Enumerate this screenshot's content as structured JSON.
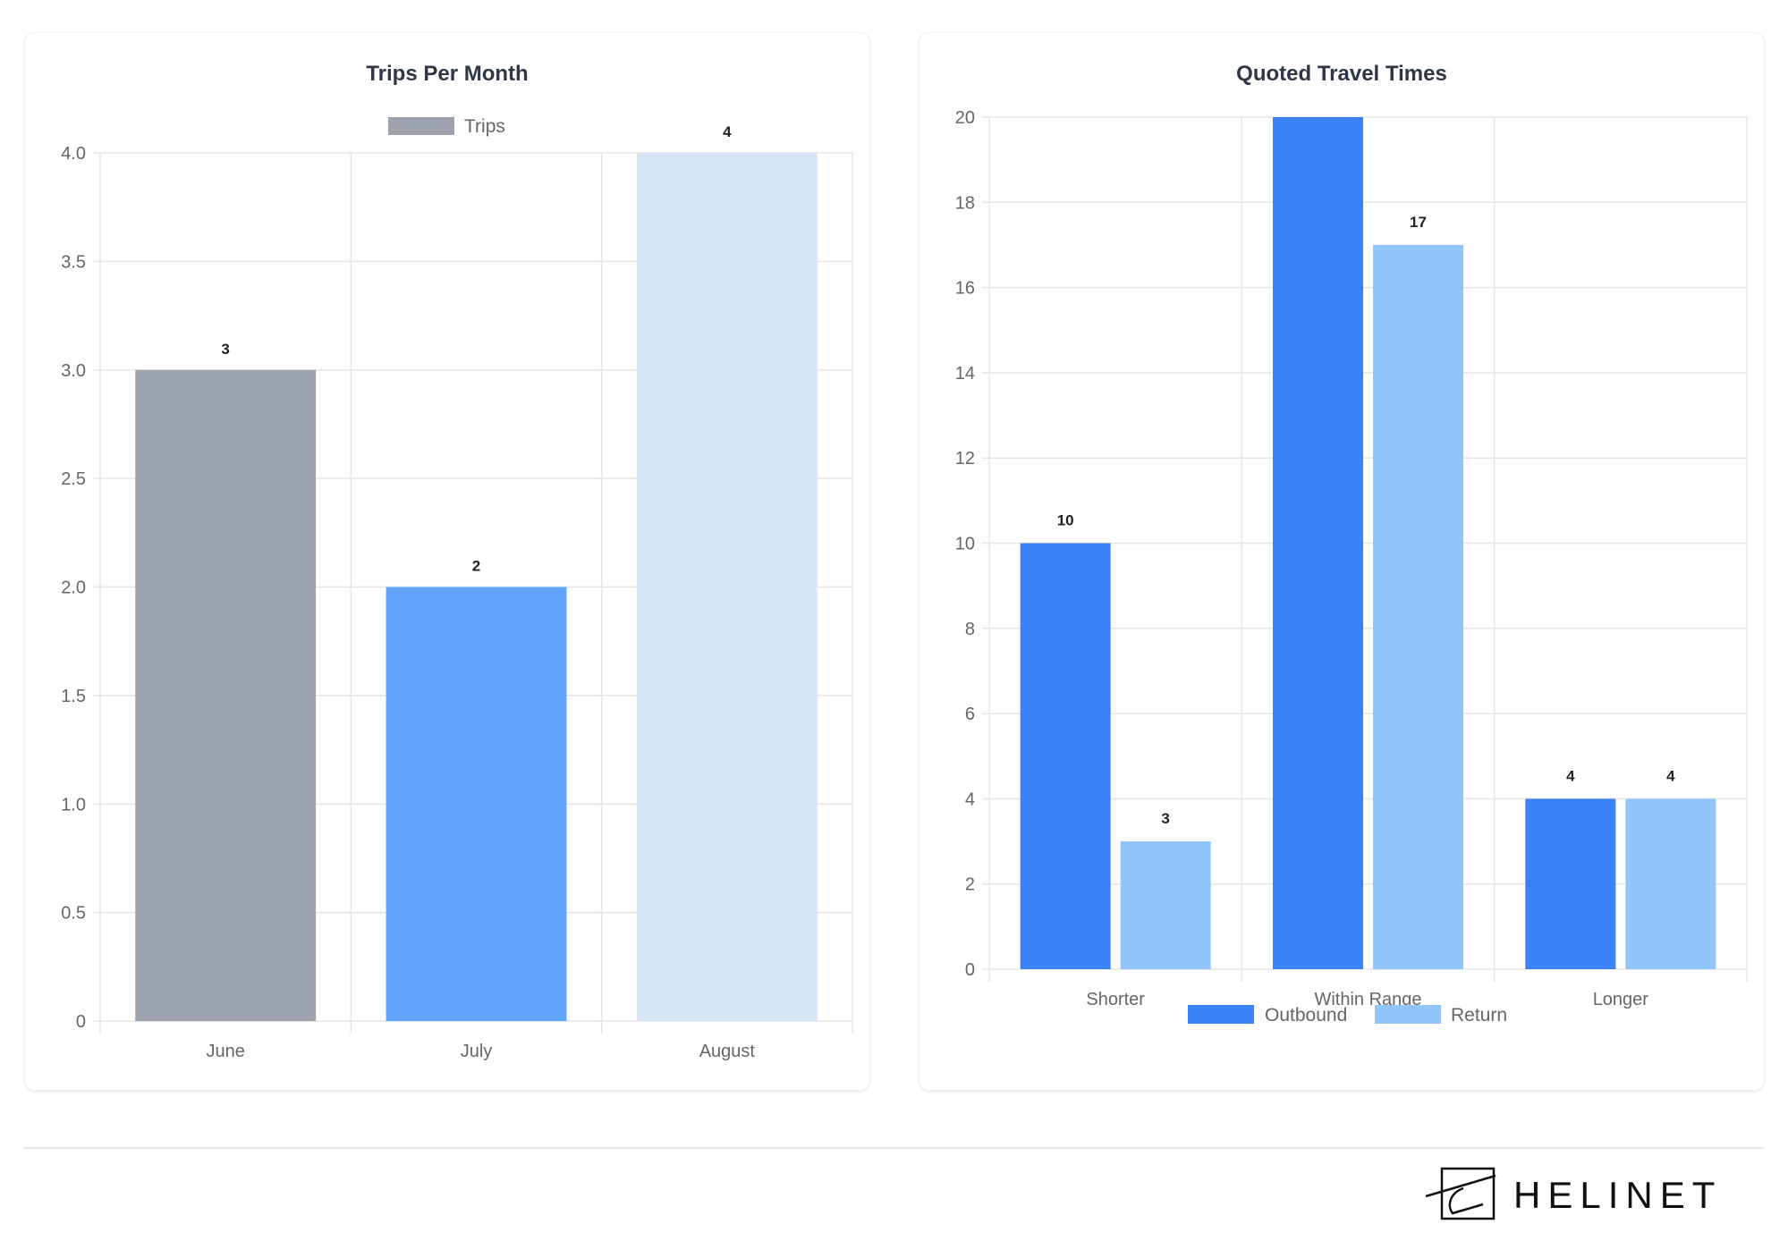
{
  "brand": {
    "name": "HELINET"
  },
  "colors": {
    "june": "#9ca3af",
    "july": "#60a5fa",
    "august": "#d6e6f7",
    "outbound": "#3b82f6",
    "return": "#93c5fd",
    "grid": "#e5e5e5",
    "title": "#2d3748"
  },
  "chart_data": [
    {
      "type": "bar",
      "title": "Trips Per Month",
      "categories": [
        "June",
        "July",
        "August"
      ],
      "series": [
        {
          "name": "Trips",
          "values": [
            3,
            2,
            4
          ]
        }
      ],
      "bar_colors": [
        "#9ca3af",
        "#60a5fa",
        "#d6e6f7"
      ],
      "ylim": [
        0,
        4
      ],
      "yticks": [
        "0",
        "0.5",
        "1.0",
        "1.5",
        "2.0",
        "2.5",
        "3.0",
        "3.5",
        "4.0"
      ],
      "legend": "top",
      "grid": true,
      "data_labels": true
    },
    {
      "type": "bar",
      "title": "Quoted Travel Times",
      "categories": [
        "Shorter",
        "Within Range",
        "Longer"
      ],
      "series": [
        {
          "name": "Outbound",
          "values": [
            10,
            20,
            4
          ],
          "color": "#3b82f6"
        },
        {
          "name": "Return",
          "values": [
            3,
            17,
            4
          ],
          "color": "#93c5fd"
        }
      ],
      "ylim": [
        0,
        20
      ],
      "yticks": [
        "0",
        "2",
        "4",
        "6",
        "8",
        "10",
        "12",
        "14",
        "16",
        "18",
        "20"
      ],
      "legend": "bottom",
      "grid": true,
      "data_labels": true,
      "data_labels_hidden_at_top": true
    }
  ]
}
